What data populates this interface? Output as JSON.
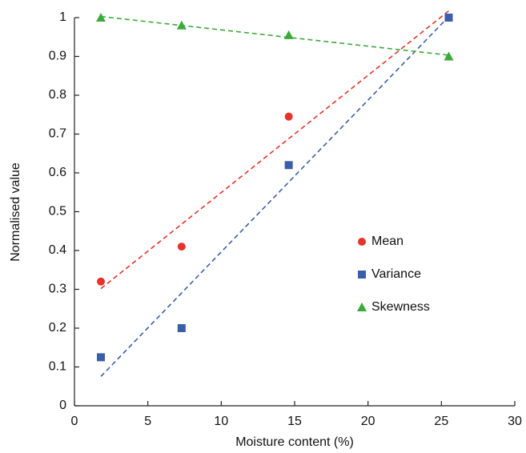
{
  "chart_data": {
    "type": "scatter",
    "x_label": "Moisture content (%)",
    "y_label": "Normalised value",
    "x": [
      1.8,
      7.3,
      14.6,
      25.5
    ],
    "series": [
      {
        "name": "Mean",
        "color": "#e8322a",
        "marker": "circle",
        "values": [
          0.32,
          0.41,
          0.745,
          1.0
        ]
      },
      {
        "name": "Variance",
        "color": "#3a5fa8",
        "marker": "square",
        "values": [
          0.125,
          0.2,
          0.62,
          1.0
        ]
      },
      {
        "name": "Skewness",
        "color": "#3aaa3a",
        "marker": "triangle",
        "values": [
          1.0,
          0.98,
          0.955,
          0.9
        ]
      }
    ],
    "trendline": "linear",
    "xlim": [
      0,
      30
    ],
    "xticks": [
      0,
      5,
      10,
      15,
      20,
      25,
      30
    ],
    "ylim": [
      0,
      1
    ],
    "yticks": [
      0,
      0.1,
      0.2,
      0.3,
      0.4,
      0.5,
      0.6,
      0.7,
      0.8,
      0.9,
      1
    ],
    "grid": false,
    "legend": "center-right"
  }
}
